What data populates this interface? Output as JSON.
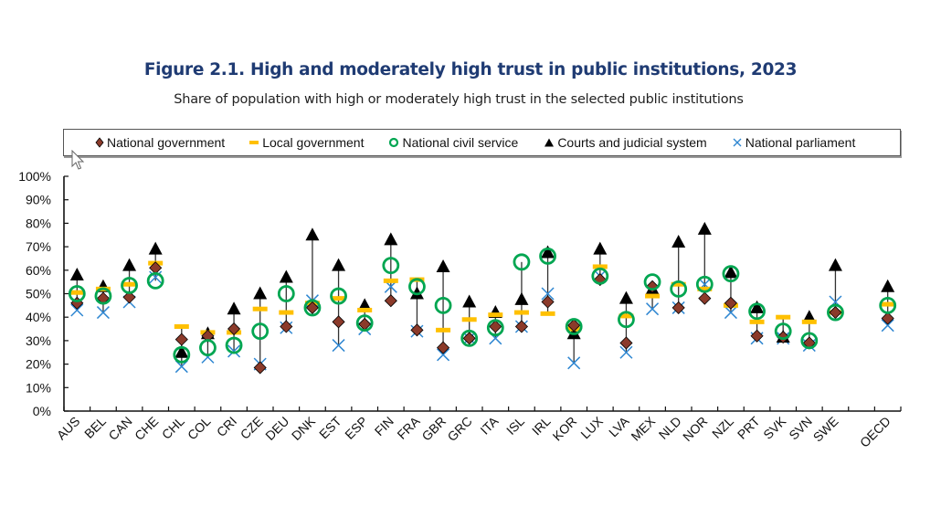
{
  "header": {
    "title": "Figure 2.1. High and moderately high trust in public institutions, 2023",
    "subtitle": "Share of population with high or moderately high trust in the selected public institutions"
  },
  "colors": {
    "national_government": "#8b3a2a",
    "local_government": "#ffc000",
    "national_civil_service": "#00a651",
    "courts": "#000000",
    "national_parliament": "#2e86d1"
  },
  "chart_data": {
    "type": "scatter",
    "title": "Figure 2.1. High and moderately high trust in public institutions, 2023",
    "subtitle": "Share of population with high or moderately high trust in the selected public institutions",
    "xlabel": "",
    "ylabel": "",
    "ylim": [
      0,
      100
    ],
    "yticks": [
      "0%",
      "10%",
      "20%",
      "30%",
      "40%",
      "50%",
      "60%",
      "70%",
      "80%",
      "90%",
      "100%"
    ],
    "grid": false,
    "legend_position": "top",
    "categories": [
      "AUS",
      "BEL",
      "CAN",
      "CHE",
      "CHL",
      "COL",
      "CRI",
      "CZE",
      "DEU",
      "DNK",
      "EST",
      "ESP",
      "FIN",
      "FRA",
      "GBR",
      "GRC",
      "ITA",
      "ISL",
      "IRL",
      "KOR",
      "LUX",
      "LVA",
      "MEX",
      "NLD",
      "NOR",
      "NZL",
      "PRT",
      "SVK",
      "SVN",
      "SWE",
      "",
      "OECD"
    ],
    "series": [
      {
        "name": "National government",
        "marker": "diamond",
        "values": [
          46,
          48,
          48.5,
          61,
          30.5,
          32,
          35,
          18.5,
          36,
          44,
          38,
          37,
          47,
          34.5,
          27,
          31,
          36,
          36,
          46.5,
          36.5,
          56,
          29,
          53,
          44,
          48,
          46,
          32,
          31.5,
          29,
          42,
          null,
          39.5
        ]
      },
      {
        "name": "Local government",
        "marker": "dash",
        "values": [
          50.5,
          52,
          54,
          63,
          36,
          33.5,
          33.5,
          43.5,
          42,
          46,
          48,
          43,
          55.5,
          56,
          34.5,
          39,
          41,
          42,
          41.5,
          35,
          61.5,
          40.5,
          49,
          54,
          52,
          45,
          38,
          40,
          38,
          42,
          null,
          45.5
        ]
      },
      {
        "name": "National civil service",
        "marker": "circle",
        "values": [
          50,
          49,
          53.5,
          55.5,
          24,
          27,
          28,
          34,
          50,
          44,
          49,
          37.5,
          62,
          53,
          45,
          31,
          35.5,
          63.5,
          66,
          36,
          57.5,
          39,
          55,
          52,
          54,
          58.5,
          42.5,
          34,
          30,
          42,
          null,
          45
        ]
      },
      {
        "name": "Courts and judicial system",
        "marker": "triangle",
        "values": [
          58,
          53,
          62,
          69,
          25,
          33,
          43.5,
          50,
          57,
          75,
          62,
          45,
          73,
          50,
          61.5,
          46.5,
          42,
          47.5,
          67.5,
          33,
          69,
          48,
          52,
          72,
          77.5,
          59,
          44,
          31.5,
          40,
          62,
          null,
          53
        ]
      },
      {
        "name": "National parliament",
        "marker": "x",
        "values": [
          43,
          42,
          46.5,
          57,
          19,
          23,
          25.5,
          20,
          35.5,
          47,
          28,
          35,
          53,
          34,
          24,
          31,
          31,
          36,
          50,
          20.5,
          57.5,
          25,
          43.5,
          44,
          54,
          42,
          31,
          31,
          28,
          46.5,
          null,
          36.5
        ]
      }
    ]
  }
}
